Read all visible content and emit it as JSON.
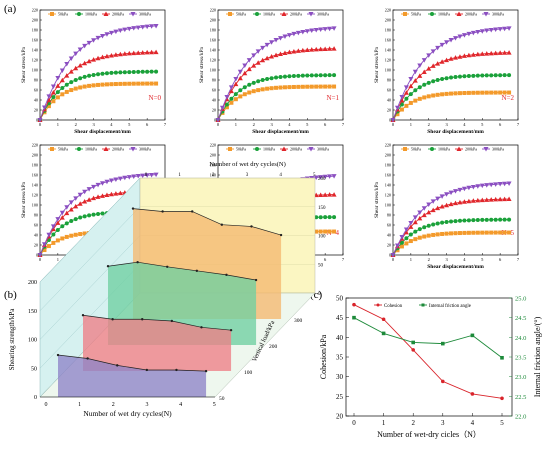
{
  "panel_labels": {
    "a": "(a)",
    "b": "(b)",
    "c": "(c)"
  },
  "chart_data": [
    {
      "type": "line",
      "panel": "a",
      "xlabel": "Shear displacement/mm",
      "ylabel": "Shear stress/kPa",
      "xticks": [
        "0",
        "1",
        "2",
        "3",
        "4",
        "5",
        "6",
        "7"
      ],
      "yticks": [
        "0",
        "20",
        "40",
        "60",
        "80",
        "100",
        "120",
        "140",
        "160",
        "180",
        "200",
        "220"
      ],
      "xlim": [
        0,
        7
      ],
      "ylim": [
        0,
        220
      ],
      "legend": [
        "50kPa",
        "100kPa",
        "200kPa",
        "300kPa"
      ],
      "colors": [
        "#f39a2b",
        "#1aa13a",
        "#e0262b",
        "#8b4fc1"
      ],
      "subplots": [
        {
          "label": "N=0",
          "plateaus": [
            73,
            97,
            137,
            192
          ]
        },
        {
          "label": "N=1",
          "plateaus": [
            67,
            90,
            144,
            187
          ]
        },
        {
          "label": "N=2",
          "plateaus": [
            55,
            90,
            136,
            187
          ]
        },
        {
          "label": "N=3",
          "plateaus": [
            47,
            87,
            129,
            164
          ]
        },
        {
          "label": "N=4",
          "plateaus": [
            47,
            76,
            122,
            161
          ]
        },
        {
          "label": "N=5",
          "plateaus": [
            45,
            71,
            113,
            146
          ]
        }
      ]
    },
    {
      "type": "bar3d",
      "panel": "b",
      "title": "Number of wet dry cycles(N)",
      "xlabel": "Number of wet dry cycles(N)",
      "ylabel": "Shearing strength/kPa",
      "zlabel": "Vertical load/kPa",
      "x": [
        0,
        1,
        2,
        3,
        4,
        5
      ],
      "ylim": [
        0,
        200
      ],
      "yticks": [
        "0",
        "50",
        "100",
        "150",
        "200"
      ],
      "loads": [
        "50",
        "100",
        "200",
        "300"
      ],
      "colors": [
        "#8e84c8",
        "#ee7f86",
        "#6fd0a2",
        "#f5b870"
      ],
      "series": [
        {
          "name": "50",
          "values": [
            73,
            67,
            55,
            47,
            47,
            45
          ]
        },
        {
          "name": "100",
          "values": [
            97,
            90,
            90,
            87,
            76,
            71
          ]
        },
        {
          "name": "200",
          "values": [
            137,
            144,
            136,
            129,
            122,
            113
          ]
        },
        {
          "name": "300",
          "values": [
            192,
            187,
            187,
            164,
            161,
            146
          ]
        }
      ]
    },
    {
      "type": "line",
      "panel": "c",
      "xlabel": "Number of wet-dry cicles（N）",
      "ylabel": "Cohesion/kPa",
      "y2label": "Internal friction angle/(°)",
      "x": [
        0,
        1,
        2,
        3,
        4,
        5
      ],
      "xticks": [
        "0",
        "1",
        "2",
        "3",
        "4",
        "5"
      ],
      "ylim": [
        20,
        50
      ],
      "yticks": [
        "20",
        "25",
        "30",
        "35",
        "40",
        "45",
        "50"
      ],
      "y2lim": [
        22.0,
        25.0
      ],
      "y2ticks": [
        "22.0",
        "22.5",
        "23.0",
        "23.5",
        "24.0",
        "24.5",
        "25.0"
      ],
      "series": [
        {
          "name": "Cohesion",
          "axis": "left",
          "color": "#d9242b",
          "values": [
            48.3,
            44.6,
            36.8,
            28.8,
            25.6,
            24.5
          ]
        },
        {
          "name": "Internal friction angle",
          "axis": "right",
          "color": "#1d8a3a",
          "values": [
            24.5,
            24.1,
            23.87,
            23.84,
            24.05,
            23.48
          ]
        }
      ]
    }
  ]
}
